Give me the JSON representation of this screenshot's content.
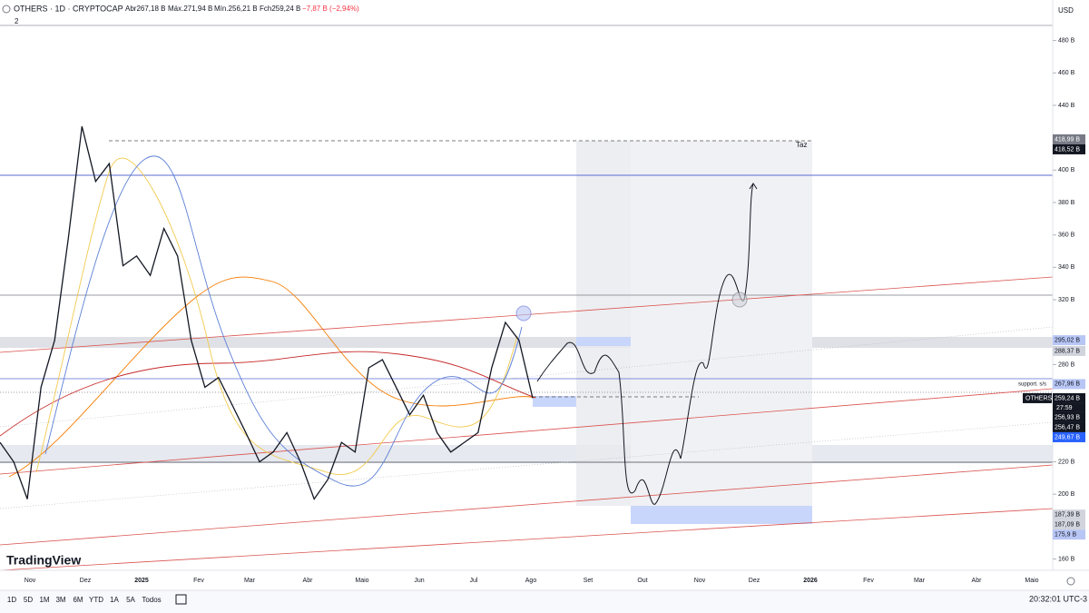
{
  "header": {
    "symbol": "OTHERS · 1D · CRYPTOCAP",
    "open": "Abr267,18 B",
    "high": "Máx.271,94 B",
    "low": "Mín.256,21 B",
    "close": "Fch259,24 B",
    "change": "−7,87 B (−2,94%)",
    "indicators": "2",
    "currency": "USD"
  },
  "chart_data": {
    "type": "line",
    "series": [
      {
        "name": "OTHERS",
        "color": "#131722",
        "values": [
          232,
          220,
          197,
          266,
          295,
          358,
          427,
          393,
          404,
          341,
          347,
          335,
          364,
          347,
          295,
          266,
          272,
          255,
          238,
          220,
          226,
          238,
          220,
          197,
          209,
          232,
          226,
          278,
          283,
          266,
          249,
          261,
          238,
          226,
          232,
          238,
          278,
          306,
          295,
          259.24
        ]
      }
    ],
    "ylim": [
      153,
      505
    ],
    "yticks": [
      {
        "value": 160,
        "label": "160 B"
      },
      {
        "value": 200,
        "label": "200 B"
      },
      {
        "value": 220,
        "label": "220 B"
      },
      {
        "value": 280,
        "label": "280 B"
      },
      {
        "value": 320,
        "label": "320 B"
      },
      {
        "value": 340,
        "label": "340 B"
      },
      {
        "value": 360,
        "label": "360 B"
      },
      {
        "value": 380,
        "label": "380 B"
      },
      {
        "value": 400,
        "label": "400 B"
      },
      {
        "value": 440,
        "label": "440 B"
      },
      {
        "value": 460,
        "label": "460 B"
      },
      {
        "value": 480,
        "label": "480 B"
      }
    ],
    "x_labels": [
      "Nov",
      "Dez",
      "2025",
      "Fev",
      "Mar",
      "Abr",
      "Maio",
      "Jun",
      "Jul",
      "Ago",
      "Set",
      "Out",
      "Nov",
      "Dez",
      "2026",
      "Fev",
      "Mar",
      "Abr",
      "Maio"
    ],
    "price_labels": [
      {
        "value": 418.99,
        "label": "418,99 B",
        "color": "#787b86"
      },
      {
        "value": 418.52,
        "label": "418,52 B",
        "color": "#131722"
      },
      {
        "value": 295.02,
        "label": "295,02 B",
        "color": "#b8c6f5"
      },
      {
        "value": 288.37,
        "label": "288,37 B",
        "color": "#d1d4dc"
      },
      {
        "value": 267.96,
        "label": "267,96 B",
        "color": "#b8c6f5"
      },
      {
        "value": 259.24,
        "label": "259,24 B",
        "color": "#131722"
      },
      {
        "value": 256.93,
        "label": "256,93 B",
        "color": "#131722"
      },
      {
        "value": 256.47,
        "label": "256,47 B",
        "color": "#131722"
      },
      {
        "value": 249.67,
        "label": "249,67 B",
        "color": "#2962ff"
      },
      {
        "value": 187.39,
        "label": "187,39 B",
        "color": "#d1d4dc"
      },
      {
        "value": 187.09,
        "label": "187,09 B",
        "color": "#d1d4dc"
      },
      {
        "value": 175.9,
        "label": "175,9 B",
        "color": "#b8c6f5"
      }
    ],
    "symbol_tag": "OTHERS",
    "countdown": "27:59",
    "support_note": "support. s/s",
    "target_note": "Taz"
  },
  "logo": "TradingView",
  "toolbar": {
    "ranges": [
      "1D",
      "5D",
      "1M",
      "3M",
      "6M",
      "YTD",
      "1A",
      "5A",
      "Todos"
    ],
    "clock": "20:32:01 UTC-3"
  }
}
